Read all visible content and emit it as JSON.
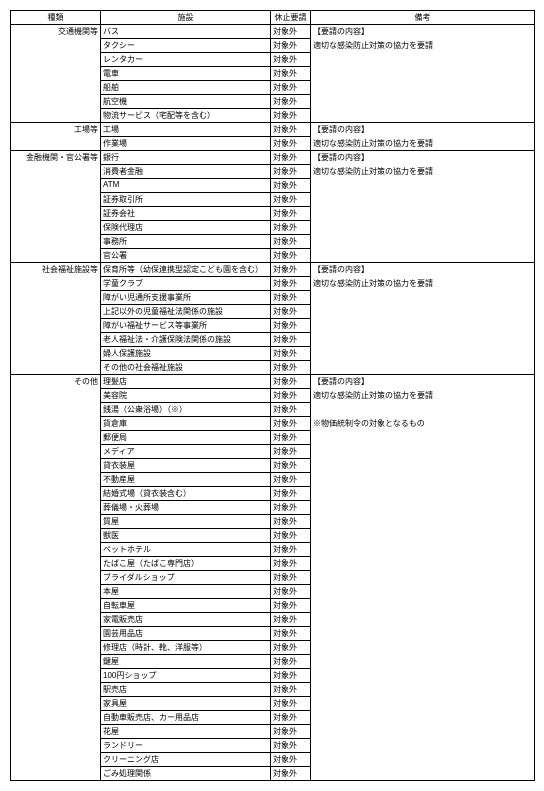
{
  "headers": {
    "category": "種類",
    "facility": "施設",
    "request": "休止要請",
    "note": "備考"
  },
  "note_title": "【要請の内容】",
  "note_body": "適切な感染防止対策の協力を要請",
  "note_extra": "※物価統制令の対象となるもの",
  "request_value": "対象外",
  "groups": [
    {
      "category": "交通機関等",
      "facilities": [
        "バス",
        "タクシー",
        "レンタカー",
        "電車",
        "船舶",
        "航空機",
        "物流サービス（宅配等を含む）"
      ],
      "notes": [
        "title",
        "body",
        "",
        "",
        "",
        "",
        ""
      ]
    },
    {
      "category": "工場等",
      "facilities": [
        "工場",
        "作業場"
      ],
      "notes": [
        "title",
        "body"
      ]
    },
    {
      "category": "金融機関・官公署等",
      "facilities": [
        "銀行",
        "消費者金融",
        "ATM",
        "証券取引所",
        "証券会社",
        "保険代理店",
        "事務所",
        "官公署"
      ],
      "notes": [
        "title",
        "body",
        "",
        "",
        "",
        "",
        "",
        ""
      ]
    },
    {
      "category": "社会福祉施設等",
      "facilities": [
        "保育所等（幼保連携型認定こども園を含む）",
        "学童クラブ",
        "障がい児通所支援事業所",
        "上記以外の児童福祉法関係の施設",
        "障がい福祉サービス等事業所",
        "老人福祉法・介護保険法関係の施設",
        "婦人保護施設",
        "その他の社会福祉施設"
      ],
      "notes": [
        "title",
        "body",
        "",
        "",
        "",
        "",
        "",
        ""
      ]
    },
    {
      "category": "その他",
      "facilities": [
        "理髪店",
        "美容院",
        "銭湯（公衆浴場）（※）",
        "貨倉庫",
        "郵便局",
        "メディア",
        "貸衣装屋",
        "不動産屋",
        "結婚式場（貸衣装含む）",
        "葬儀場・火葬場",
        "質屋",
        "獣医",
        "ペットホテル",
        "たばこ屋（たばこ専門店）",
        "ブライダルショップ",
        "本屋",
        "自転車屋",
        "家電販売店",
        "園芸用品店",
        "修理店（時計、靴、洋服等）",
        "鍵屋",
        "100円ショップ",
        "駅売店",
        "家具屋",
        "自動車販売店、カー用品店",
        "花屋",
        "ランドリー",
        "クリーニング店",
        "ごみ処理関係"
      ],
      "notes": [
        "title",
        "body",
        "",
        "extra",
        "",
        "",
        "",
        "",
        "",
        "",
        "",
        "",
        "",
        "",
        "",
        "",
        "",
        "",
        "",
        "",
        "",
        "",
        "",
        "",
        "",
        "",
        "",
        "",
        ""
      ]
    }
  ]
}
